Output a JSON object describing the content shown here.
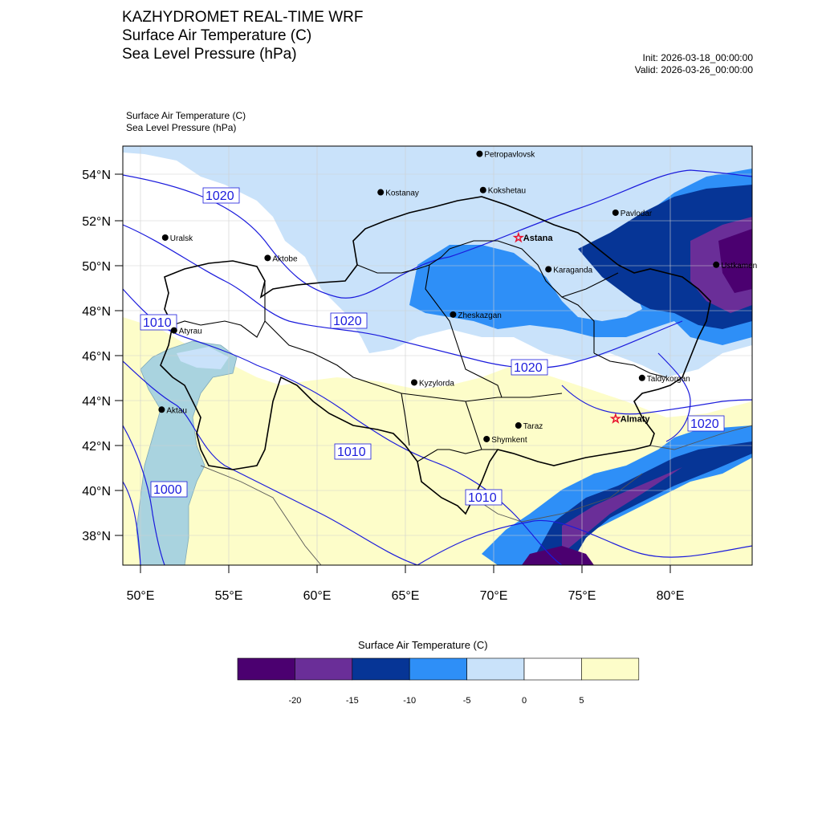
{
  "header": {
    "title_lines": [
      "KAZHYDROMET REAL-TIME WRF",
      "Surface Air Temperature  (C)",
      "Sea Level Pressure  (hPa)"
    ],
    "init": "Init: 2026-03-18_00:00:00",
    "valid": "Valid: 2026-03-26_00:00:00",
    "sub_lines": [
      "Surface Air Temperature   (C)",
      "Sea Level Pressure   (hPa)"
    ]
  },
  "map": {
    "lat_labels": [
      "54°N",
      "52°N",
      "50°N",
      "48°N",
      "46°N",
      "44°N",
      "42°N",
      "40°N",
      "38°N"
    ],
    "lon_labels": [
      "50°E",
      "55°E",
      "60°E",
      "65°E",
      "70°E",
      "75°E",
      "80°E"
    ],
    "cities": [
      {
        "name": "Petropavlovsk",
        "lon": 69.2,
        "lat": 54.9,
        "capital": false
      },
      {
        "name": "Kokshetau",
        "lon": 69.4,
        "lat": 53.3,
        "capital": false
      },
      {
        "name": "Kostanay",
        "lon": 63.6,
        "lat": 53.2,
        "capital": false
      },
      {
        "name": "Pavlodar",
        "lon": 76.9,
        "lat": 52.3,
        "capital": false
      },
      {
        "name": "Uralsk",
        "lon": 51.4,
        "lat": 51.2,
        "capital": false
      },
      {
        "name": "Astana",
        "lon": 71.4,
        "lat": 51.2,
        "capital": true
      },
      {
        "name": "Ustkamen",
        "lon": 82.6,
        "lat": 50.0,
        "capital": false
      },
      {
        "name": "Aktobe",
        "lon": 57.2,
        "lat": 50.3,
        "capital": false
      },
      {
        "name": "Karaganda",
        "lon": 73.1,
        "lat": 49.8,
        "capital": false
      },
      {
        "name": "Atyrau",
        "lon": 51.9,
        "lat": 47.1,
        "capital": false
      },
      {
        "name": "Zheskazgan",
        "lon": 67.7,
        "lat": 47.8,
        "capital": false
      },
      {
        "name": "Taldykorgan",
        "lon": 78.4,
        "lat": 45.0,
        "capital": false
      },
      {
        "name": "Aktau",
        "lon": 51.2,
        "lat": 43.6,
        "capital": false
      },
      {
        "name": "Kyzylorda",
        "lon": 65.5,
        "lat": 44.8,
        "capital": false
      },
      {
        "name": "Almaty",
        "lon": 76.9,
        "lat": 43.2,
        "capital": true
      },
      {
        "name": "Taraz",
        "lon": 71.4,
        "lat": 42.9,
        "capital": false
      },
      {
        "name": "Shymkent",
        "lon": 69.6,
        "lat": 42.3,
        "capital": false
      }
    ],
    "isobar_labels": [
      "1020",
      "1010",
      "1020",
      "1020",
      "1020",
      "1010",
      "1010",
      "1000"
    ],
    "colors": {
      "lt_minus20": "#4b0070",
      "m20_m15": "#6a2e98",
      "m15_m10": "#063596",
      "m10_m5": "#2e8ff7",
      "m5_0": "#c9e2fa",
      "p0_5": "#ffffff",
      "gt5": "#fdfdc9",
      "caspian": "#a9d3df",
      "isobar": "#1b1bdc",
      "border": "#000000"
    }
  },
  "colorbar": {
    "title": "Surface Air Temperature (C)",
    "colors": [
      "#4b0070",
      "#6a2e98",
      "#063596",
      "#2e8ff7",
      "#c9e2fa",
      "#ffffff",
      "#fdfdc9"
    ],
    "ticks": [
      "-20",
      "-15",
      "-10",
      "-5",
      "0",
      "5"
    ]
  }
}
